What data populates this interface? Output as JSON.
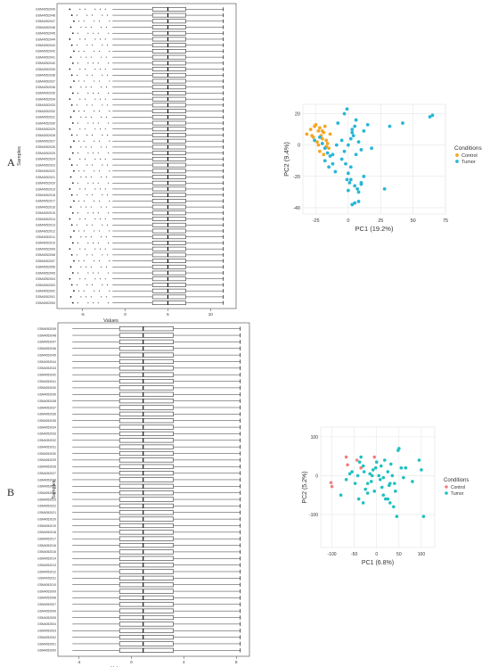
{
  "panels": {
    "a": "A",
    "b": "B"
  },
  "chart_data": [
    {
      "type": "box",
      "panel": "A",
      "xlabel": "Values",
      "ylabel": "Samples",
      "x_ticks": [
        "-5",
        "0",
        "5",
        "10"
      ],
      "xlim": [
        -8,
        13
      ],
      "sample_labels": [
        "GSM4052049",
        "GSM4052048",
        "GSM4052047",
        "GSM4052046",
        "GSM4052045",
        "GSM4052044",
        "GSM4052043",
        "GSM4052042",
        "GSM4052041",
        "GSM4052040",
        "GSM4052039",
        "GSM4052038",
        "GSM4052037",
        "GSM4052036",
        "GSM4052035",
        "GSM4052034",
        "GSM4052033",
        "GSM4052032",
        "GSM4052031",
        "GSM4052030",
        "GSM4052029",
        "GSM4052028",
        "GSM4052027",
        "GSM4052026",
        "GSM4052025",
        "GSM4052024",
        "GSM4052023",
        "GSM4052022",
        "GSM4052021",
        "GSM4052020",
        "GSM4052019",
        "GSM4052018",
        "GSM4052017",
        "GSM4052016",
        "GSM4052015",
        "GSM4052014",
        "GSM4052013",
        "GSM4052012",
        "GSM4052011",
        "GSM4052010",
        "GSM4052009",
        "GSM4052008",
        "GSM4052007",
        "GSM4052006",
        "GSM4052005",
        "GSM4052004",
        "GSM4052003",
        "GSM4052002",
        "GSM4052001",
        "GSM4052000"
      ],
      "box_summary": {
        "lower_whisker": -1.5,
        "q1": 3.2,
        "median": 5.0,
        "q3": 7.1,
        "upper_whisker": 11.5,
        "outliers_low_from": -6.5
      }
    },
    {
      "type": "scatter",
      "panel": "A",
      "xlabel": "PC1 (19.2%)",
      "ylabel": "PC2 (9.4%)",
      "x_ticks": [
        "-25",
        "0",
        "25",
        "50",
        "75"
      ],
      "y_ticks": [
        "20",
        "0",
        "-20",
        "-40"
      ],
      "xlim": [
        -35,
        75
      ],
      "ylim": [
        -44,
        26
      ],
      "legend_title": "Conditions",
      "legend_position": "right",
      "series": [
        {
          "name": "Control",
          "color": "#f5a623",
          "x": [
            -32,
            -29,
            -27,
            -25,
            -24,
            -23,
            -22,
            -21,
            -20,
            -19,
            -18,
            -17,
            -16,
            -15,
            -22,
            -19,
            -26,
            -28,
            -20,
            -17,
            -23,
            -14
          ],
          "y": [
            7,
            10,
            5,
            13,
            2,
            9,
            11,
            6,
            4,
            8,
            12,
            3,
            1,
            -2,
            -4,
            -6,
            12,
            6,
            9,
            -1,
            0,
            7
          ]
        },
        {
          "name": "Tumor",
          "color": "#29b6d8",
          "x": [
            -26,
            -22,
            -20,
            -18,
            -16,
            -14,
            -12,
            -10,
            -8,
            -5,
            -3,
            -1,
            0,
            2,
            3,
            5,
            6,
            8,
            10,
            12,
            15,
            18,
            -2,
            0,
            2,
            5,
            7,
            8,
            10,
            12,
            -5,
            -3,
            0,
            3,
            -1,
            1,
            2,
            4,
            6,
            28,
            32,
            42,
            63,
            65,
            5,
            8,
            10,
            3,
            -18,
            -15,
            -9,
            -12
          ],
          "y": [
            3,
            5,
            1,
            -2,
            -5,
            -7,
            -12,
            -17,
            14,
            3,
            20,
            23,
            0,
            4,
            8,
            12,
            16,
            2,
            -3,
            9,
            13,
            -2,
            -12,
            -18,
            -22,
            -26,
            -28,
            -30,
            -25,
            -20,
            -9,
            -4,
            -29,
            -38,
            -22,
            -24,
            -14,
            6,
            -6,
            -28,
            12,
            14,
            18,
            19,
            -37,
            -36,
            -24,
            10,
            -10,
            -14,
            0,
            -6
          ]
        }
      ]
    },
    {
      "type": "box",
      "panel": "B",
      "xlabel": "Values",
      "ylabel": "Samples",
      "x_ticks": [
        "-4",
        "0",
        "4",
        "8"
      ],
      "xlim": [
        -5.6,
        9
      ],
      "sample_labels": [
        "GSM4052049",
        "GSM4052048",
        "GSM4052047",
        "GSM4052046",
        "GSM4052045",
        "GSM4052044",
        "GSM4052043",
        "GSM4052042",
        "GSM4052041",
        "GSM4052040",
        "GSM4052039",
        "GSM4052038",
        "GSM4052037",
        "GSM4052036",
        "GSM4052035",
        "GSM4052034",
        "GSM4052033",
        "GSM4052032",
        "GSM4052031",
        "GSM4052030",
        "GSM4052029",
        "GSM4052028",
        "GSM4052027",
        "GSM4052026",
        "GSM4052025",
        "GSM4052024",
        "GSM4052023",
        "GSM4052022",
        "GSM4052021",
        "GSM4052020",
        "GSM4052019",
        "GSM4052018",
        "GSM4052017",
        "GSM4052016",
        "GSM4052015",
        "GSM4052014",
        "GSM4052013",
        "GSM4052012",
        "GSM4052011",
        "GSM4052010",
        "GSM4052009",
        "GSM4052008",
        "GSM4052007",
        "GSM4052006",
        "GSM4052005",
        "GSM4052004",
        "GSM4052003",
        "GSM4052002",
        "GSM4052001",
        "GSM4052000"
      ],
      "box_summary": {
        "lower_whisker": -4.5,
        "q1": -0.9,
        "median": 0.9,
        "q3": 3.2,
        "upper_whisker": 8.3
      }
    },
    {
      "type": "scatter",
      "panel": "B",
      "xlabel": "PC1 (6.8%)",
      "ylabel": "PC2 (5.2%)",
      "x_ticks": [
        "-100",
        "-50",
        "0",
        "50",
        "100"
      ],
      "y_ticks": [
        "100",
        "0",
        "-100"
      ],
      "xlim": [
        -125,
        130
      ],
      "ylim": [
        -185,
        125
      ],
      "legend_title": "Conditions",
      "legend_position": "right",
      "series": [
        {
          "name": "Control",
          "color": "#f08080",
          "x": [
            -102,
            -100,
            -68,
            -65,
            -44,
            -5,
            -35
          ],
          "y": [
            -18,
            -28,
            48,
            28,
            40,
            48,
            20
          ]
        },
        {
          "name": "Tumor",
          "color": "#20c0c0",
          "x": [
            -80,
            -68,
            -60,
            -55,
            -48,
            -42,
            -38,
            -35,
            -30,
            -28,
            -25,
            -20,
            -15,
            -12,
            -8,
            -5,
            -2,
            0,
            5,
            8,
            10,
            12,
            15,
            18,
            20,
            25,
            28,
            30,
            32,
            35,
            38,
            40,
            42,
            45,
            48,
            50,
            55,
            60,
            65,
            80,
            95,
            100,
            105,
            -40,
            -30,
            -20,
            -10,
            30,
            15,
            25
          ],
          "y": [
            -50,
            -10,
            5,
            10,
            -20,
            0,
            35,
            48,
            25,
            10,
            -35,
            -20,
            5,
            -15,
            15,
            -40,
            20,
            35,
            0,
            -10,
            25,
            -30,
            -5,
            40,
            -60,
            10,
            -25,
            -70,
            30,
            0,
            -80,
            -20,
            -40,
            -105,
            65,
            70,
            20,
            -5,
            20,
            -15,
            40,
            15,
            -105,
            -60,
            -70,
            -45,
            0,
            -20,
            -50,
            -60
          ]
        }
      ]
    }
  ]
}
